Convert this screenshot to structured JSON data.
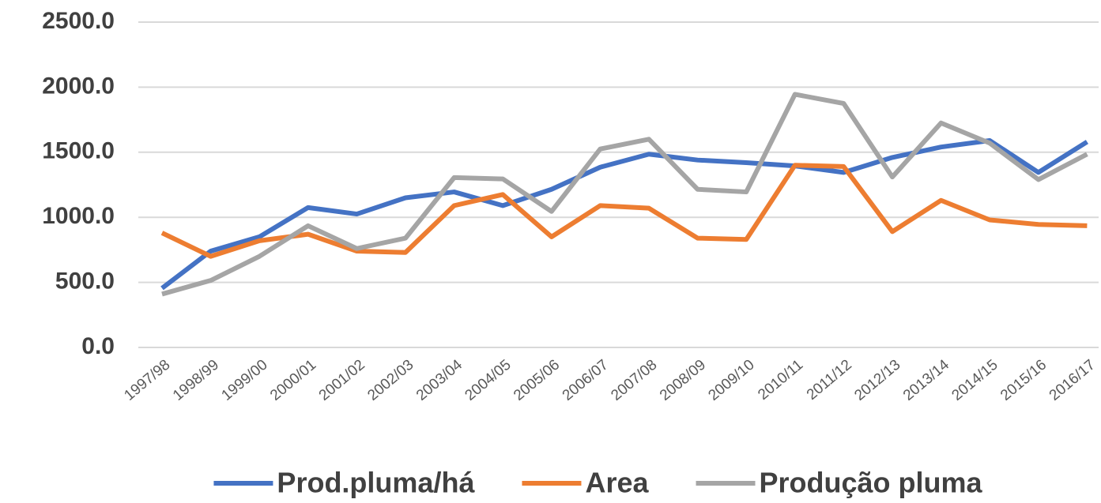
{
  "chart_data": {
    "type": "line",
    "categories": [
      "1997/98",
      "1998/99",
      "1999/00",
      "2000/01",
      "2001/02",
      "2002/03",
      "2003/04",
      "2004/05",
      "2005/06",
      "2006/07",
      "2007/08",
      "2008/09",
      "2009/10",
      "2010/11",
      "2011/12",
      "2012/13",
      "2013/14",
      "2014/15",
      "2015/16",
      "2016/17"
    ],
    "series": [
      {
        "name": "Prod.pluma/há",
        "color": "#4472c4",
        "values": [
          455,
          740,
          850,
          1075,
          1025,
          1150,
          1195,
          1090,
          1215,
          1385,
          1485,
          1440,
          1420,
          1395,
          1345,
          1460,
          1540,
          1590,
          1345,
          1580
        ]
      },
      {
        "name": "Area",
        "color": "#ed7d31",
        "values": [
          880,
          700,
          820,
          870,
          740,
          730,
          1090,
          1175,
          850,
          1090,
          1070,
          840,
          830,
          1400,
          1390,
          890,
          1130,
          980,
          945,
          935
        ]
      },
      {
        "name": "Produção pluma",
        "color": "#a5a5a5",
        "values": [
          410,
          515,
          700,
          935,
          760,
          840,
          1305,
          1295,
          1045,
          1525,
          1600,
          1215,
          1195,
          1945,
          1875,
          1310,
          1725,
          1570,
          1290,
          1485
        ]
      }
    ],
    "ylim": [
      0,
      2500
    ],
    "yticks": [
      {
        "value": 0,
        "label": "0.0"
      },
      {
        "value": 500,
        "label": "500.0"
      },
      {
        "value": 1000,
        "label": "1000.0"
      },
      {
        "value": 1500,
        "label": "1500.0"
      },
      {
        "value": 2000,
        "label": "2000.0"
      },
      {
        "value": 2500,
        "label": "2500.0"
      }
    ],
    "grid": true,
    "legend": "bottom"
  }
}
